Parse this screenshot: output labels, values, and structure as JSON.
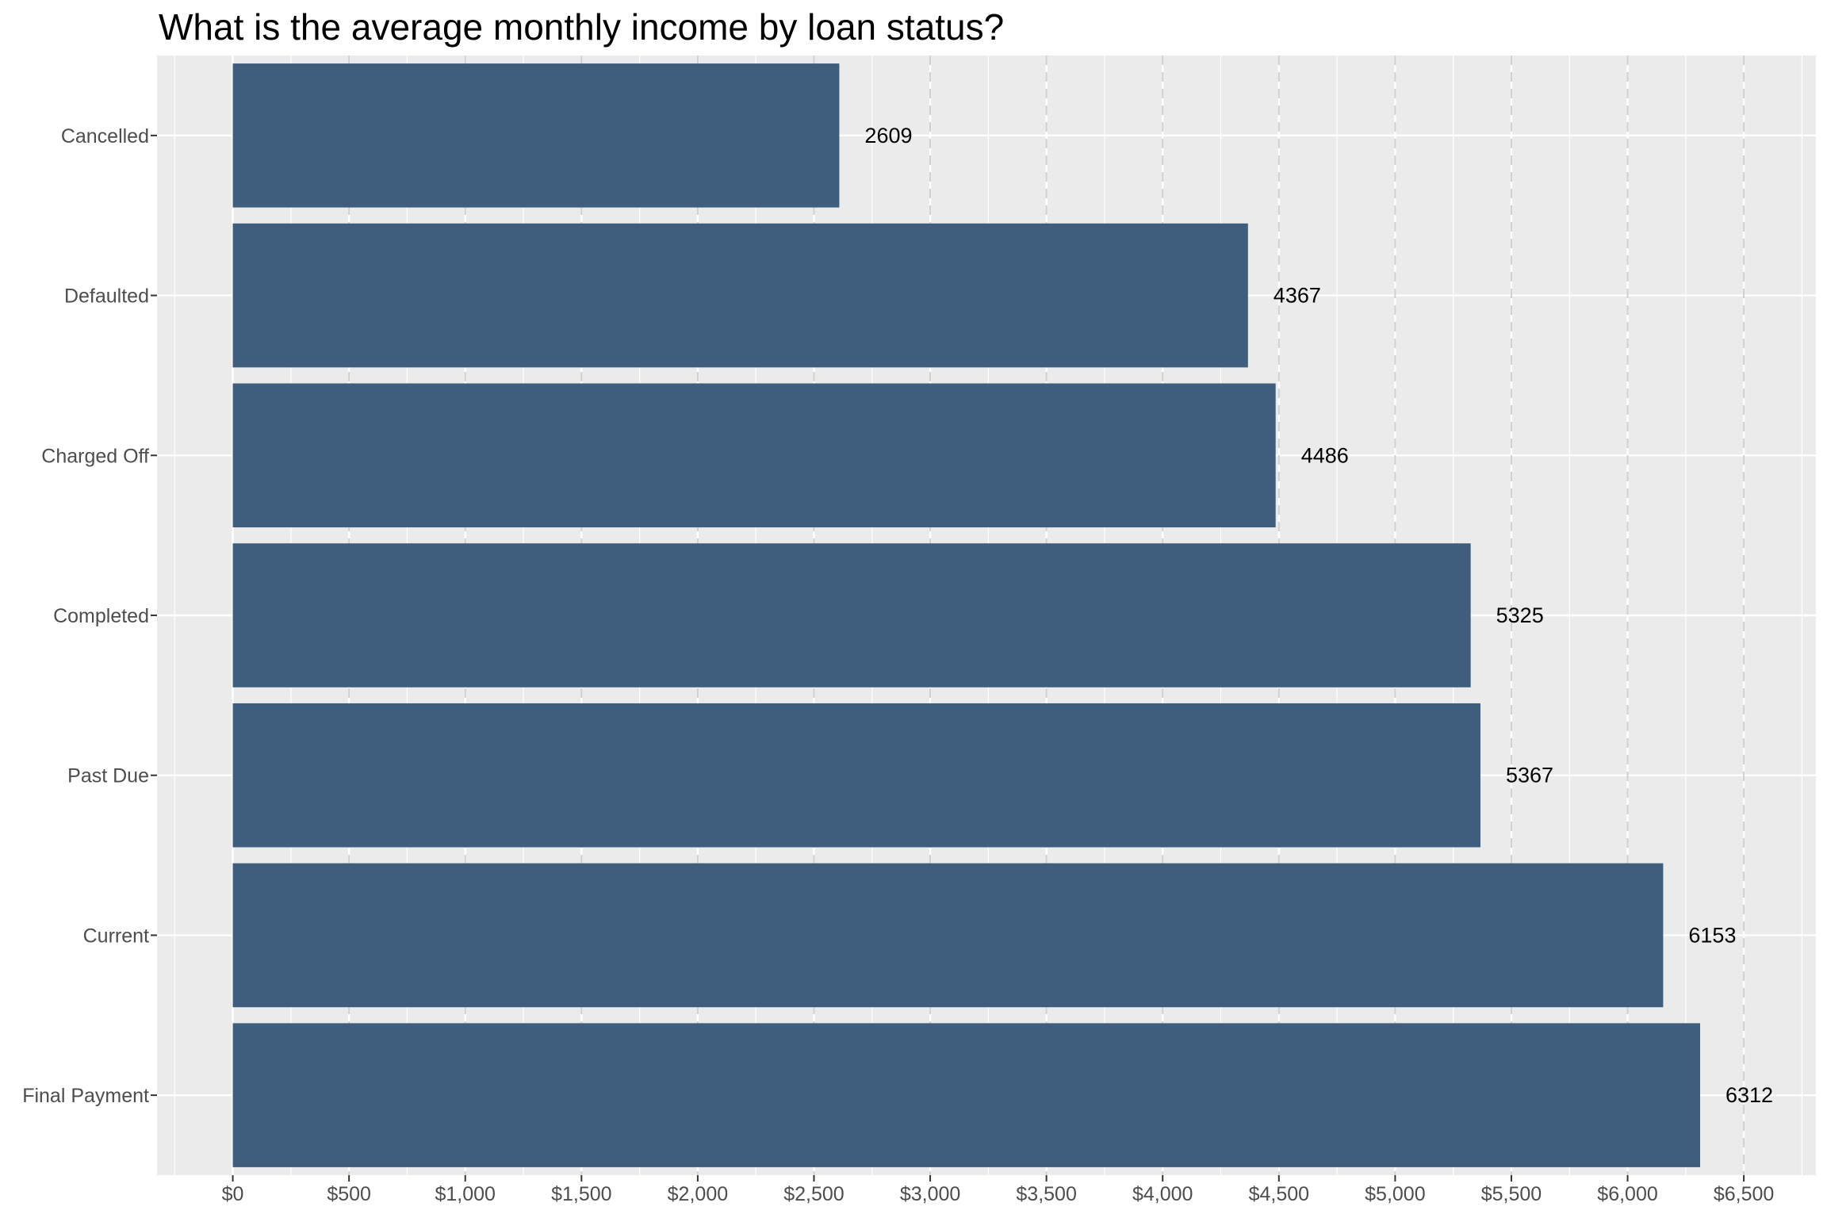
{
  "chart_data": {
    "type": "bar",
    "orientation": "horizontal",
    "title": "What is the average monthly income by loan status?",
    "xlabel": "",
    "ylabel": "",
    "categories": [
      "Cancelled",
      "Defaulted",
      "Charged Off",
      "Completed",
      "Past Due",
      "Current",
      "Final Payment"
    ],
    "values": [
      2609,
      4367,
      4486,
      5325,
      5367,
      6153,
      6312
    ],
    "data_labels": [
      "2609",
      "4367",
      "4486",
      "5325",
      "5367",
      "6153",
      "6312"
    ],
    "x_ticks": [
      0,
      500,
      1000,
      1500,
      2000,
      2500,
      3000,
      3500,
      4000,
      4500,
      5000,
      5500,
      6000,
      6500
    ],
    "x_tick_labels": [
      "$0",
      "$500",
      "$1,000",
      "$1,500",
      "$2,000",
      "$2,500",
      "$3,000",
      "$3,500",
      "$4,000",
      "$4,500",
      "$5,000",
      "$5,500",
      "$6,000",
      "$6,500"
    ],
    "xlim": [
      -326,
      6810
    ],
    "grid": true,
    "vertical_reference_lines": "dashed at every $500",
    "colors": {
      "bar": "#3f5e7d",
      "panel": "#ebebeb",
      "grid": "#ffffff",
      "dashed": "#cfcfcf"
    }
  }
}
